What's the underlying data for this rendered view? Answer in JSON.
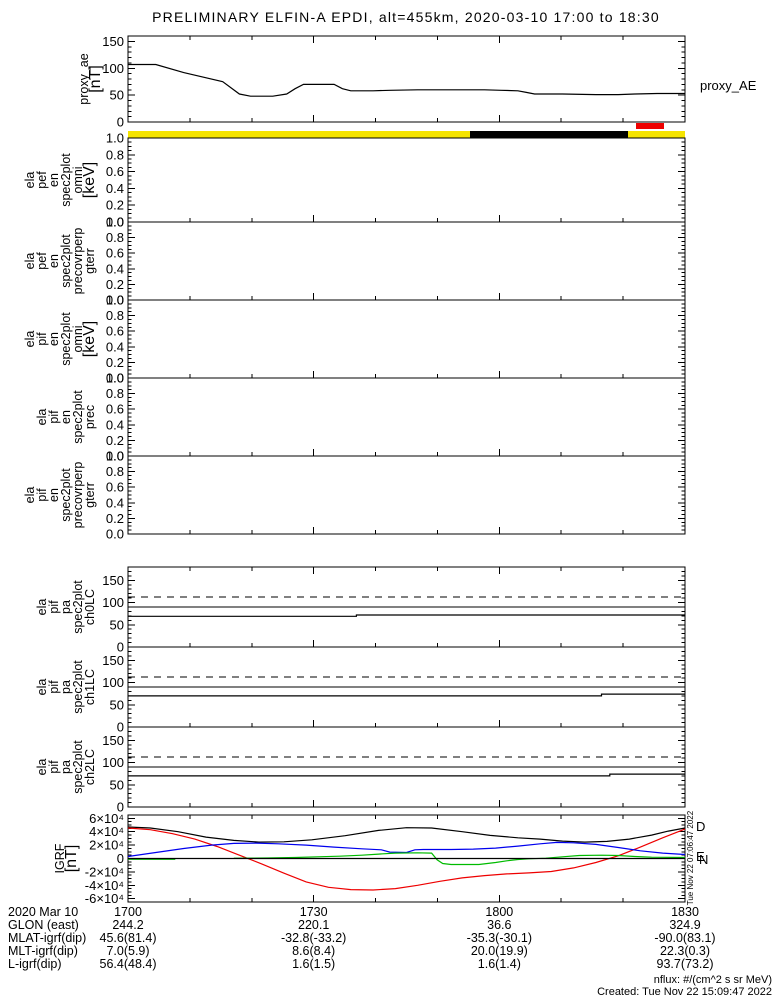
{
  "title": "PRELIMINARY ELFIN-A EPDI, alt=455km, 2020-03-10 17:00 to 18:30",
  "right_labels": {
    "panel1": "proxy_AE"
  },
  "igrf_legend": {
    "d": "D",
    "e": "E",
    "n": "N"
  },
  "watermark_vertical": "Tue Nov 22 07:06:47 2022",
  "footer_note": {
    "units": "nflux: #/(cm^2 s sr MeV)",
    "created": "Created: Tue Nov 22 15:09:47 2022"
  },
  "xaxis": {
    "date_label": "2020 Mar 10",
    "tick_labels": [
      "1700",
      "1730",
      "1800",
      "1830"
    ],
    "annotation_rows": [
      {
        "label": "GLON (east)",
        "values": [
          "244.2",
          "220.1",
          "36.6",
          "324.9"
        ]
      },
      {
        "label": "MLAT-igrf(dip)",
        "values": [
          "45.6(81.4)",
          "-32.8(-33.2)",
          "-35.3(-30.1)",
          "-90.0(83.1)"
        ]
      },
      {
        "label": "MLT-igrf(dip)",
        "values": [
          "7.0(5.9)",
          "8.6(8.4)",
          "20.0(19.9)",
          "22.3(0.3)"
        ]
      },
      {
        "label": "L-igrf(dip)",
        "values": [
          "56.4(48.4)",
          "1.6(1.5)",
          "1.6(1.4)",
          "93.7(73.2)"
        ]
      }
    ]
  },
  "chart_data": [
    {
      "id": "proxy_ae",
      "type": "line",
      "label_lines": [
        "proxy_ae",
        "[nT]"
      ],
      "ylim": [
        0,
        160
      ],
      "y_minor": 10,
      "yticks": {
        "values": [
          0,
          50,
          100,
          150
        ],
        "labels": [
          "0",
          "50",
          "100",
          "150"
        ]
      },
      "x_units": "fraction of 17:00-18:30 window",
      "series": [
        {
          "name": "proxy_AE",
          "color": "#000000",
          "points": [
            [
              0,
              107
            ],
            [
              0.05,
              107
            ],
            [
              0.1,
              92
            ],
            [
              0.17,
              75
            ],
            [
              0.2,
              52
            ],
            [
              0.22,
              48
            ],
            [
              0.26,
              48
            ],
            [
              0.285,
              52
            ],
            [
              0.3,
              62
            ],
            [
              0.315,
              70
            ],
            [
              0.37,
              70
            ],
            [
              0.385,
              62
            ],
            [
              0.4,
              58
            ],
            [
              0.44,
              58
            ],
            [
              0.47,
              59
            ],
            [
              0.52,
              60
            ],
            [
              0.6,
              60
            ],
            [
              0.64,
              60
            ],
            [
              0.67,
              59
            ],
            [
              0.7,
              58
            ],
            [
              0.715,
              55
            ],
            [
              0.73,
              52
            ],
            [
              0.78,
              52
            ],
            [
              0.84,
              51
            ],
            [
              0.88,
              51
            ],
            [
              0.91,
              52
            ],
            [
              0.95,
              53
            ],
            [
              1,
              53
            ]
          ]
        }
      ]
    },
    {
      "id": "data_quality_bar",
      "type": "segment_bar",
      "segments": [
        {
          "start": 0,
          "end": 0.614,
          "color": "#f5e400"
        },
        {
          "start": 0.614,
          "end": 0.898,
          "color": "#000000"
        },
        {
          "start": 0.898,
          "end": 1,
          "color": "#f5e400"
        }
      ],
      "marker": {
        "start": 0.912,
        "end": 0.962,
        "color": "#ee0000"
      }
    },
    {
      "id": "ela_pef_en_spec2plot_omni",
      "type": "spectrogram_empty",
      "label_lines": [
        "ela",
        "pef",
        "en",
        "spec2plot",
        "omni",
        "[keV]"
      ],
      "ylim": [
        0,
        1
      ],
      "y_minor": 0.05,
      "yticks": {
        "values": [
          1.0,
          0.8,
          0.6,
          0.4,
          0.2,
          0.0
        ],
        "labels": [
          "1.0",
          "0.8",
          "0.6",
          "0.4",
          "0.2",
          "0.0"
        ]
      }
    },
    {
      "id": "ela_pef_en_spec2plot_precovrperp_gterr",
      "type": "spectrogram_empty",
      "label_lines": [
        "ela",
        "pef",
        "en",
        "spec2plot",
        "precovrperp",
        "gterr"
      ],
      "ylim": [
        0,
        1
      ],
      "y_minor": 0.05,
      "yticks": {
        "values": [
          1.0,
          0.8,
          0.6,
          0.4,
          0.2,
          0.0
        ],
        "labels": [
          "1.0",
          "0.8",
          "0.6",
          "0.4",
          "0.2",
          "0.0"
        ]
      }
    },
    {
      "id": "ela_pif_en_spec2plot_omni",
      "type": "spectrogram_empty",
      "label_lines": [
        "ela",
        "pif",
        "en",
        "spec2plot",
        "omni",
        "[keV]"
      ],
      "ylim": [
        0,
        1
      ],
      "y_minor": 0.05,
      "yticks": {
        "values": [
          1.0,
          0.8,
          0.6,
          0.4,
          0.2,
          0.0
        ],
        "labels": [
          "1.0",
          "0.8",
          "0.6",
          "0.4",
          "0.2",
          "0.0"
        ]
      }
    },
    {
      "id": "ela_pif_en_spec2plot_prec",
      "type": "spectrogram_empty",
      "label_lines": [
        "ela",
        "pif",
        "en",
        "spec2plot",
        "prec"
      ],
      "ylim": [
        0,
        1
      ],
      "y_minor": 0.05,
      "yticks": {
        "values": [
          1.0,
          0.8,
          0.6,
          0.4,
          0.2,
          0.0
        ],
        "labels": [
          "1.0",
          "0.8",
          "0.6",
          "0.4",
          "0.2",
          "0.0"
        ]
      }
    },
    {
      "id": "ela_pif_en_spec2plot_precovrperp_gterr",
      "type": "spectrogram_empty",
      "label_lines": [
        "ela",
        "pif",
        "en",
        "spec2plot",
        "precovrperp",
        "gterr"
      ],
      "ylim": [
        0,
        1
      ],
      "y_minor": 0.05,
      "yticks": {
        "values": [
          1.0,
          0.8,
          0.6,
          0.4,
          0.2,
          0.0
        ],
        "labels": [
          "1.0",
          "0.8",
          "0.6",
          "0.4",
          "0.2",
          "0.0"
        ]
      }
    },
    {
      "id": "ela_pif_pa_spec2plot_ch0LC",
      "type": "line",
      "label_lines": [
        "ela",
        "pif",
        "pa",
        "spec2plot",
        "ch0LC"
      ],
      "ylim": [
        0,
        180
      ],
      "y_minor": 10,
      "yticks": {
        "values": [
          0,
          50,
          100,
          150
        ],
        "labels": [
          "0",
          "50",
          "100",
          "150"
        ]
      },
      "ref_lines": [
        {
          "y": 112,
          "style": "dashed"
        },
        {
          "y": 90,
          "style": "solid"
        }
      ],
      "series": [
        {
          "name": "loss_cone",
          "color": "#000000",
          "points": [
            [
              0,
              69
            ],
            [
              0.41,
              69
            ],
            [
              0.41,
              72
            ],
            [
              1,
              72
            ]
          ]
        }
      ]
    },
    {
      "id": "ela_pif_pa_spec2plot_ch1LC",
      "type": "line",
      "label_lines": [
        "ela",
        "pif",
        "pa",
        "spec2plot",
        "ch1LC"
      ],
      "ylim": [
        0,
        180
      ],
      "y_minor": 10,
      "yticks": {
        "values": [
          0,
          50,
          100,
          150
        ],
        "labels": [
          "0",
          "50",
          "100",
          "150"
        ]
      },
      "ref_lines": [
        {
          "y": 112,
          "style": "dashed"
        },
        {
          "y": 90,
          "style": "solid"
        }
      ],
      "series": [
        {
          "name": "loss_cone",
          "color": "#000000",
          "points": [
            [
              0,
              70
            ],
            [
              0.85,
              70
            ],
            [
              0.85,
              74
            ],
            [
              1,
              74
            ]
          ]
        }
      ]
    },
    {
      "id": "ela_pif_pa_spec2plot_ch2LC",
      "type": "line",
      "label_lines": [
        "ela",
        "pif",
        "pa",
        "spec2plot",
        "ch2LC"
      ],
      "ylim": [
        0,
        180
      ],
      "y_minor": 10,
      "yticks": {
        "values": [
          0,
          50,
          100,
          150
        ],
        "labels": [
          "0",
          "50",
          "100",
          "150"
        ]
      },
      "ref_lines": [
        {
          "y": 112,
          "style": "dashed"
        },
        {
          "y": 90,
          "style": "solid"
        }
      ],
      "series": [
        {
          "name": "loss_cone",
          "color": "#000000",
          "points": [
            [
              0,
              70
            ],
            [
              0.865,
              70
            ],
            [
              0.865,
              74
            ],
            [
              1,
              74
            ]
          ]
        }
      ]
    },
    {
      "id": "igrf",
      "type": "line",
      "label_lines": [
        "IGRF",
        "[nT]"
      ],
      "ylim": [
        -65000,
        65000
      ],
      "y_minor": 5000,
      "yticks": {
        "values": [
          60000,
          40000,
          20000,
          0,
          -20000,
          -40000,
          -60000
        ],
        "labels": [
          "6×10⁴",
          "4×10⁴",
          "2×10⁴",
          "0",
          "-2×10⁴",
          "-4×10⁴",
          "-6×10⁴"
        ]
      },
      "series": [
        {
          "name": "B",
          "color": "#000000",
          "points": [
            [
              0,
              47000
            ],
            [
              0.04,
              45500
            ],
            [
              0.09,
              40000
            ],
            [
              0.14,
              32000
            ],
            [
              0.19,
              27000
            ],
            [
              0.235,
              24500
            ],
            [
              0.28,
              25000
            ],
            [
              0.33,
              28000
            ],
            [
              0.39,
              34000
            ],
            [
              0.45,
              42000
            ],
            [
              0.5,
              46000
            ],
            [
              0.545,
              45500
            ],
            [
              0.6,
              40000
            ],
            [
              0.65,
              34500
            ],
            [
              0.7,
              31000
            ],
            [
              0.74,
              29000
            ],
            [
              0.78,
              26000
            ],
            [
              0.82,
              24500
            ],
            [
              0.86,
              25500
            ],
            [
              0.9,
              29000
            ],
            [
              0.94,
              35000
            ],
            [
              0.97,
              41000
            ],
            [
              1,
              45500
            ]
          ]
        },
        {
          "name": "D",
          "color": "#ee0000",
          "points": [
            [
              0,
              45500
            ],
            [
              0.04,
              43000
            ],
            [
              0.08,
              37000
            ],
            [
              0.12,
              29000
            ],
            [
              0.16,
              18000
            ],
            [
              0.2,
              5000
            ],
            [
              0.24,
              -8000
            ],
            [
              0.28,
              -22000
            ],
            [
              0.32,
              -35000
            ],
            [
              0.36,
              -43000
            ],
            [
              0.4,
              -46500
            ],
            [
              0.44,
              -47000
            ],
            [
              0.48,
              -45000
            ],
            [
              0.52,
              -40000
            ],
            [
              0.56,
              -34000
            ],
            [
              0.6,
              -29000
            ],
            [
              0.64,
              -25500
            ],
            [
              0.68,
              -23000
            ],
            [
              0.72,
              -21500
            ],
            [
              0.76,
              -19500
            ],
            [
              0.8,
              -14000
            ],
            [
              0.84,
              -6000
            ],
            [
              0.88,
              4000
            ],
            [
              0.92,
              17000
            ],
            [
              0.96,
              31000
            ],
            [
              1,
              44000
            ]
          ]
        },
        {
          "name": "N",
          "color": "#0000ee",
          "points": [
            [
              0,
              3000
            ],
            [
              0.05,
              9000
            ],
            [
              0.1,
              15000
            ],
            [
              0.15,
              20000
            ],
            [
              0.19,
              22500
            ],
            [
              0.23,
              23000
            ],
            [
              0.27,
              22000
            ],
            [
              0.32,
              20000
            ],
            [
              0.37,
              17000
            ],
            [
              0.42,
              14500
            ],
            [
              0.455,
              13000
            ],
            [
              0.47,
              9500
            ],
            [
              0.5,
              9000
            ],
            [
              0.515,
              13000
            ],
            [
              0.53,
              13500
            ],
            [
              0.58,
              13500
            ],
            [
              0.62,
              14000
            ],
            [
              0.66,
              15500
            ],
            [
              0.7,
              18500
            ],
            [
              0.74,
              22000
            ],
            [
              0.77,
              24000
            ],
            [
              0.8,
              23500
            ],
            [
              0.84,
              21000
            ],
            [
              0.88,
              16500
            ],
            [
              0.92,
              11500
            ],
            [
              0.96,
              8000
            ],
            [
              1,
              6000
            ]
          ]
        },
        {
          "name": "E",
          "color": "#00bb00",
          "points": [
            [
              0,
              -1200
            ],
            [
              0.085,
              -1200
            ],
            null,
            [
              0.19,
              500
            ],
            [
              0.25,
              800
            ],
            [
              0.3,
              1500
            ],
            [
              0.34,
              2500
            ],
            [
              0.38,
              3500
            ],
            [
              0.42,
              5000
            ],
            [
              0.45,
              6500
            ],
            [
              0.48,
              8000
            ],
            [
              0.52,
              8500
            ],
            [
              0.545,
              8000
            ],
            [
              0.555,
              -2000
            ],
            [
              0.565,
              -7500
            ],
            [
              0.58,
              -9000
            ],
            [
              0.63,
              -9000
            ],
            [
              0.66,
              -6000
            ],
            [
              0.68,
              -3500
            ],
            [
              0.7,
              -1500
            ],
            [
              0.72,
              -500
            ],
            [
              0.75,
              500
            ],
            [
              0.78,
              2500
            ],
            [
              0.81,
              4500
            ],
            [
              0.85,
              5000
            ],
            [
              0.88,
              4500
            ],
            [
              0.91,
              3000
            ],
            [
              0.94,
              2000
            ],
            [
              1,
              1500
            ]
          ]
        },
        {
          "name": "zero_line",
          "color": "#000000",
          "points": [
            [
              0,
              0
            ],
            [
              1,
              0
            ]
          ]
        }
      ]
    }
  ]
}
